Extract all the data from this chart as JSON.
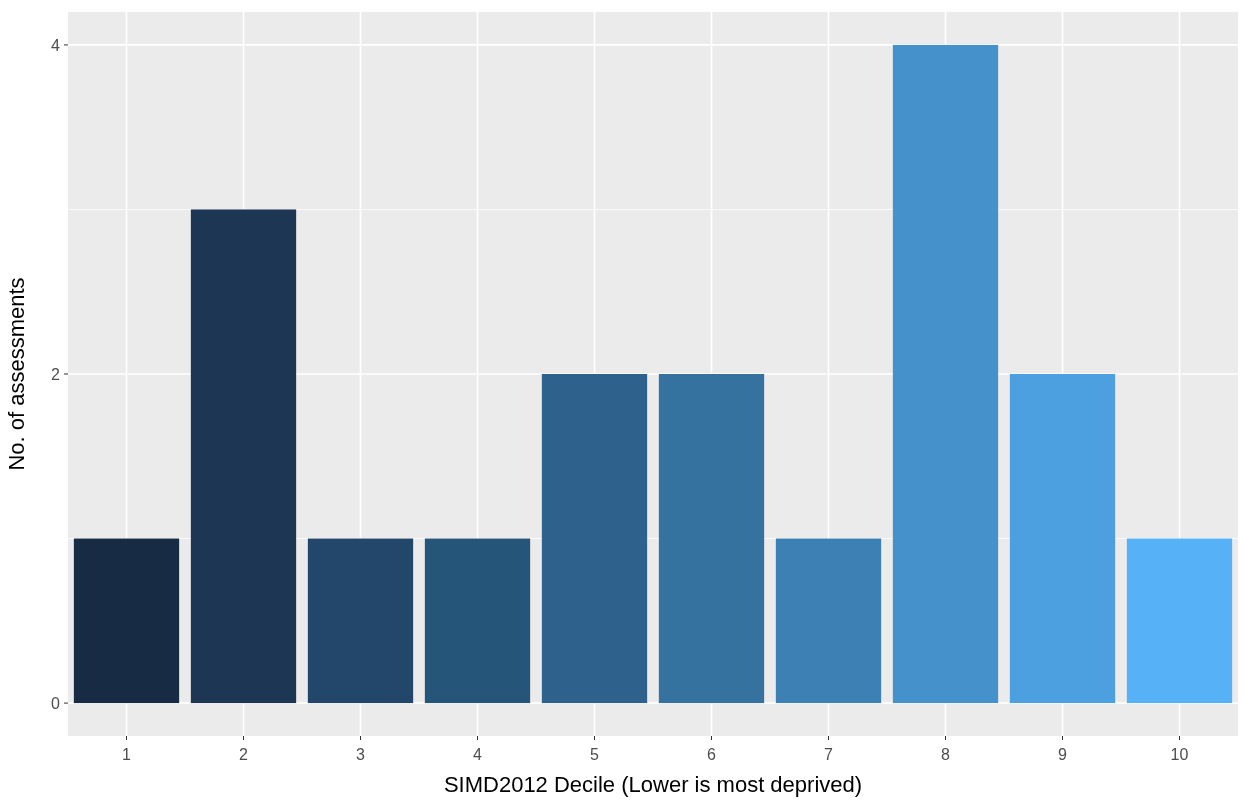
{
  "chart_data": {
    "type": "bar",
    "xlabel": "SIMD2012 Decile (Lower is most deprived)",
    "ylabel": "No. of assessments",
    "categories": [
      "1",
      "2",
      "3",
      "4",
      "5",
      "6",
      "7",
      "8",
      "9",
      "10"
    ],
    "values": [
      1,
      3,
      1,
      1,
      2,
      2,
      1,
      4,
      2,
      1
    ],
    "colors": [
      "#172c44",
      "#1c3654",
      "#22476a",
      "#26557a",
      "#2e628d",
      "#36729f",
      "#3d80b3",
      "#4591cb",
      "#4da0e0",
      "#56b1f7"
    ],
    "ylim": [
      -0.2,
      4.2
    ],
    "yticks": [
      0,
      {
        "value": 1,
        "label": null
      },
      2,
      {
        "value": 3,
        "label": null
      },
      4
    ],
    "grid": true
  }
}
